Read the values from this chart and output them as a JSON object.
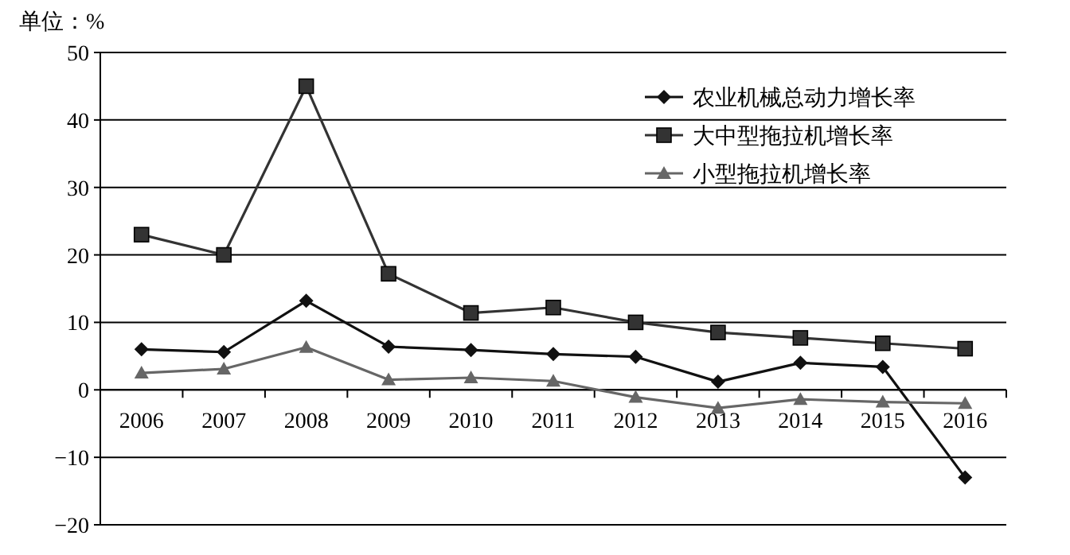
{
  "chart_data": {
    "type": "line",
    "ylabel": "单位：%",
    "categories": [
      "2006",
      "2007",
      "2008",
      "2009",
      "2010",
      "2011",
      "2012",
      "2013",
      "2014",
      "2015",
      "2016"
    ],
    "series": [
      {
        "name": "农业机械总动力增长率",
        "color": "#111111",
        "marker": "diamond",
        "values": [
          6,
          5.6,
          13.2,
          6.4,
          5.9,
          5.3,
          4.9,
          1.2,
          4,
          3.4,
          -13
        ]
      },
      {
        "name": "大中型拖拉机增长率",
        "color": "#333333",
        "marker": "square",
        "values": [
          23,
          20,
          45,
          17.2,
          11.4,
          12.2,
          10,
          8.5,
          7.7,
          6.9,
          6.1
        ]
      },
      {
        "name": "小型拖拉机增长率",
        "color": "#666666",
        "marker": "triangle",
        "values": [
          2.5,
          3.1,
          6.3,
          1.5,
          1.8,
          1.3,
          -1.1,
          -2.7,
          -1.4,
          -1.8,
          -2
        ]
      }
    ],
    "ylim": [
      -20,
      50
    ],
    "yticks": [
      -20,
      -10,
      0,
      10,
      20,
      30,
      40,
      50
    ],
    "grid": "y",
    "legend": "top right"
  }
}
